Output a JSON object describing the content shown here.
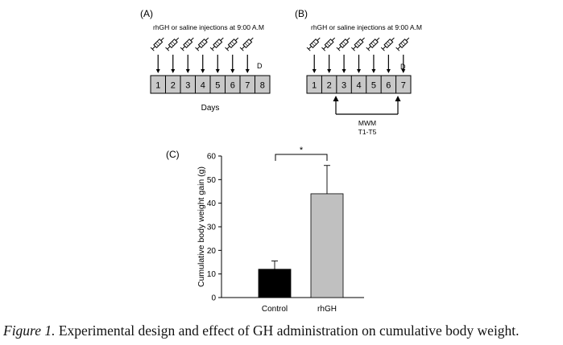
{
  "panel_a": {
    "label": "(A)",
    "injection_label": "rhGH or saline injections at 9:00 A.M",
    "days": [
      "1",
      "2",
      "3",
      "4",
      "5",
      "6",
      "7",
      "8"
    ],
    "marker": "D",
    "axis_label": "Days"
  },
  "panel_b": {
    "label": "(B)",
    "injection_label": "rhGH or saline injections at 9:00 A.M",
    "days": [
      "1",
      "2",
      "3",
      "4",
      "5",
      "6",
      "7"
    ],
    "marker": "D",
    "test_label": "MWM",
    "test_sublabel": "T1-T5"
  },
  "chart_data": {
    "panel_label": "(C)",
    "type": "bar",
    "categories": [
      "Control",
      "rhGH"
    ],
    "values": [
      12,
      44
    ],
    "errors": [
      3.5,
      12
    ],
    "colors": [
      "#000000",
      "#c0c0c0"
    ],
    "ylabel": "Cumulative body weight gain (g)",
    "xlabel": "",
    "ylim": [
      0,
      60
    ],
    "yticks": [
      "0",
      "10",
      "20",
      "30",
      "40",
      "50",
      "60"
    ],
    "significance": "*"
  },
  "caption": {
    "figure_label": "Figure 1.",
    "text": " Experimental design and effect of GH administration on cumulative body weight."
  }
}
